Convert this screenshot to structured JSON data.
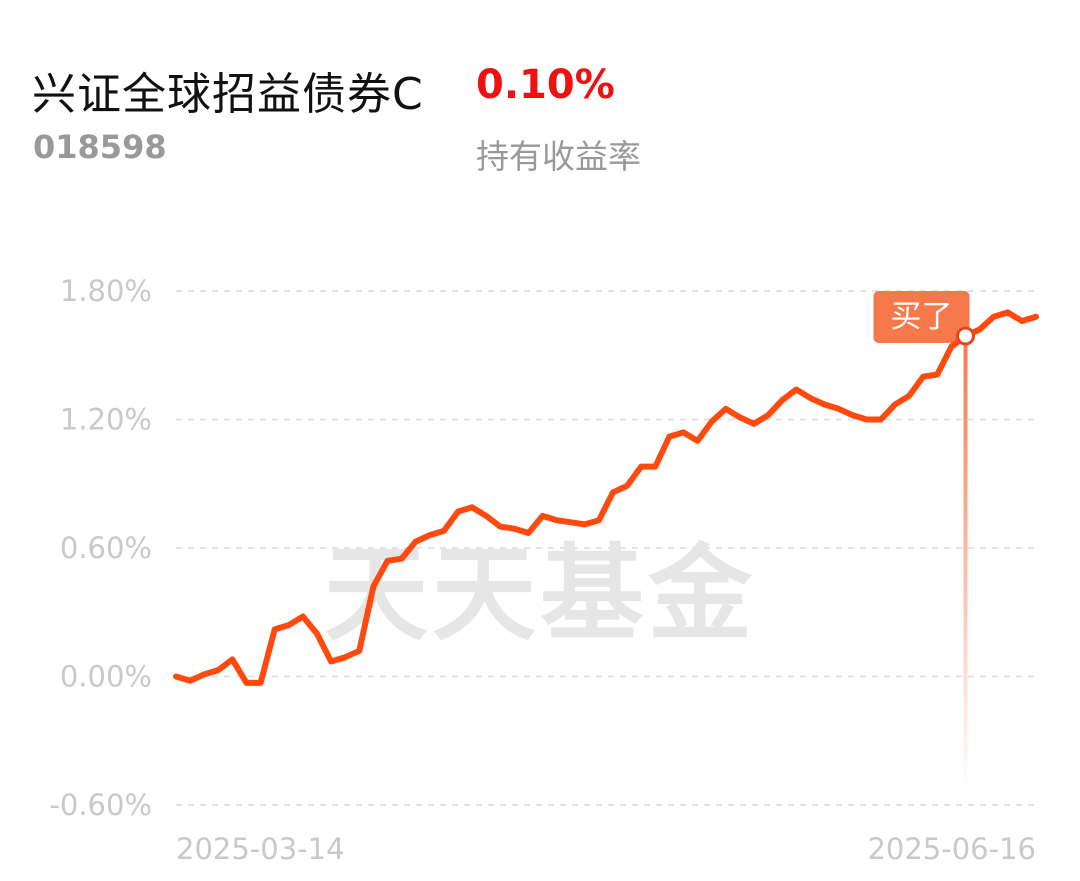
{
  "header": {
    "fund_name": "兴证全球招益债券C",
    "fund_code": "018598",
    "holding_return": "0.10%",
    "holding_return_label": "持有收益率"
  },
  "watermark": "天天基金",
  "colors": {
    "line": "#ff4a0f",
    "marker": "#f7784a",
    "return_text": "#ee1111",
    "grid": "#e3e3e3",
    "axis_text": "#c9c9c9"
  },
  "chart_data": {
    "type": "line",
    "title": "",
    "xlabel": "",
    "ylabel": "",
    "ylim": [
      -0.6,
      1.8
    ],
    "yticks": [
      1.8,
      1.2,
      0.6,
      0.0,
      -0.6
    ],
    "ytick_labels": [
      "1.80%",
      "1.20%",
      "0.60%",
      "0.00%",
      "-0.60%"
    ],
    "x_start_label": "2025-03-14",
    "x_end_label": "2025-06-16",
    "grid": true,
    "series": [
      {
        "values": [
          0.0,
          -0.02,
          0.01,
          0.03,
          0.08,
          -0.03,
          -0.03,
          0.22,
          0.24,
          0.28,
          0.2,
          0.07,
          0.09,
          0.12,
          0.42,
          0.54,
          0.55,
          0.63,
          0.66,
          0.68,
          0.77,
          0.79,
          0.75,
          0.7,
          0.69,
          0.67,
          0.75,
          0.73,
          0.72,
          0.71,
          0.73,
          0.86,
          0.89,
          0.98,
          0.98,
          1.12,
          1.14,
          1.1,
          1.19,
          1.25,
          1.21,
          1.18,
          1.22,
          1.29,
          1.34,
          1.3,
          1.27,
          1.25,
          1.22,
          1.2,
          1.2,
          1.27,
          1.31,
          1.4,
          1.41,
          1.54,
          1.59,
          1.62,
          1.68,
          1.7,
          1.66,
          1.68
        ]
      }
    ],
    "buy_marker": {
      "label": "买了",
      "index": 56
    }
  }
}
